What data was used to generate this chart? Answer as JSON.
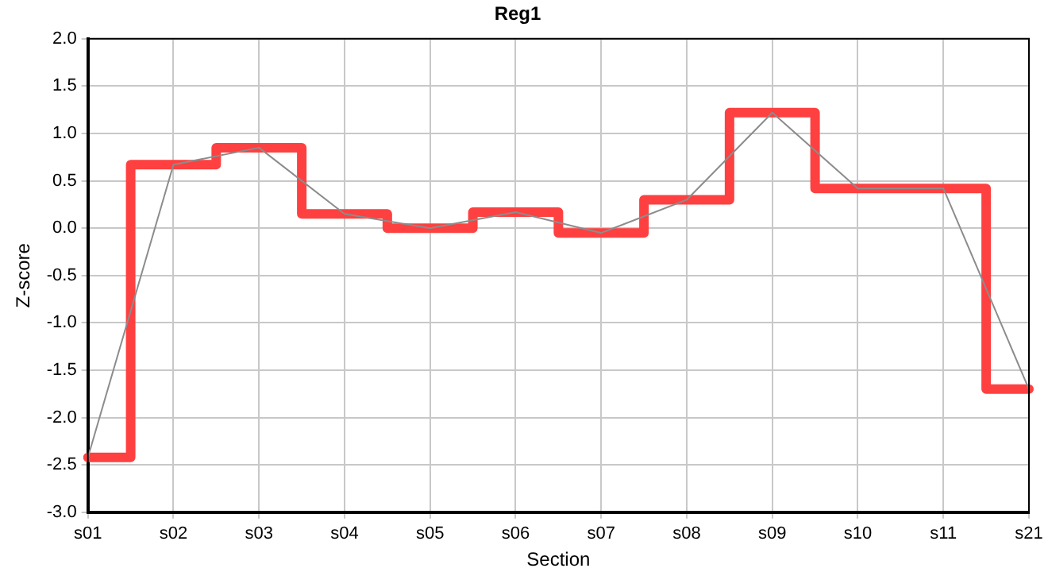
{
  "chart_data": {
    "type": "line",
    "title": "Reg1",
    "xlabel": "Section",
    "ylabel": "Z-score",
    "categories": [
      "s01",
      "s02",
      "s03",
      "s04",
      "s05",
      "s06",
      "s07",
      "s08",
      "s09",
      "s10",
      "s11",
      "s21"
    ],
    "series": [
      {
        "type": "line",
        "color": "#8c8c8c",
        "values": [
          -2.42,
          0.67,
          0.85,
          0.15,
          0.0,
          0.17,
          -0.05,
          0.3,
          1.22,
          0.42,
          0.42,
          -1.7
        ]
      },
      {
        "type": "step",
        "color": "#ff4040",
        "values": [
          -2.42,
          0.67,
          0.85,
          0.15,
          0.0,
          0.17,
          -0.05,
          0.3,
          1.22,
          0.42,
          0.42,
          -1.7
        ]
      }
    ],
    "ylim": [
      -3,
      2
    ],
    "yticks": [
      {
        "value": -3,
        "label": "-3.0"
      },
      {
        "value": -2.5,
        "label": "-2.5"
      },
      {
        "value": -2,
        "label": "-2.0"
      },
      {
        "value": -1.5,
        "label": "-1.5"
      },
      {
        "value": -1,
        "label": "-1.0"
      },
      {
        "value": -0.5,
        "label": "-0.5"
      },
      {
        "value": 0,
        "label": "0.0"
      },
      {
        "value": 0.5,
        "label": "0.5"
      },
      {
        "value": 1,
        "label": "1.0"
      },
      {
        "value": 1.5,
        "label": "1.5"
      },
      {
        "value": 2,
        "label": "2.0"
      }
    ],
    "grid": true,
    "legend": false,
    "marker": "none",
    "line_style": "solid"
  }
}
